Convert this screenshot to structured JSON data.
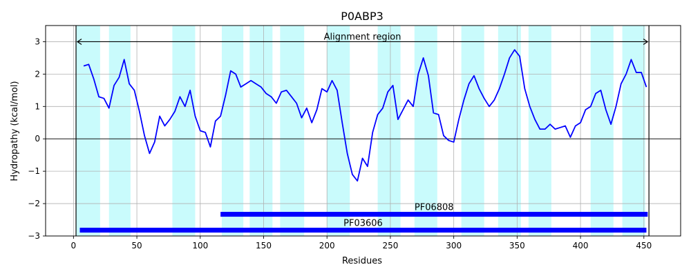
{
  "chart_data": {
    "type": "line",
    "title": "P0ABP3",
    "xlabel": "Residues",
    "ylabel": "Hydropathy (kcal/mol)",
    "xlim": [
      -22,
      479
    ],
    "ylim": [
      -3,
      3.5
    ],
    "xticks": [
      0,
      50,
      100,
      150,
      200,
      250,
      300,
      350,
      400,
      450
    ],
    "yticks": [
      -3,
      -2,
      -1,
      0,
      1,
      2,
      3
    ],
    "grid": true,
    "colors": {
      "line": "#0000ff",
      "bands": "#c9fbfc",
      "domains": "#0000ff",
      "zero_line": "#000000",
      "grid": "#b0b0b0"
    },
    "alignment_region": {
      "label": "Alignment region",
      "start": 2,
      "end": 454,
      "y": 3.0
    },
    "bands": [
      [
        2,
        21
      ],
      [
        28,
        45
      ],
      [
        78,
        96
      ],
      [
        117,
        134
      ],
      [
        139,
        157
      ],
      [
        163,
        182
      ],
      [
        200,
        218
      ],
      [
        240,
        258
      ],
      [
        269,
        287
      ],
      [
        306,
        324
      ],
      [
        335,
        353
      ],
      [
        359,
        377
      ],
      [
        408,
        426
      ],
      [
        433,
        451
      ]
    ],
    "domains": [
      {
        "label": "PF06808",
        "start": 116,
        "end": 453,
        "y": -2.33
      },
      {
        "label": "PF03606",
        "start": 5,
        "end": 452,
        "y": -2.82
      }
    ],
    "series": [
      {
        "x": [
          8,
          12,
          16,
          20,
          24,
          28,
          32,
          36,
          40,
          44,
          48,
          52,
          56,
          60,
          64,
          68,
          72,
          76,
          80,
          84,
          88,
          92,
          96,
          100,
          104,
          108,
          112,
          116,
          120,
          124,
          128,
          132,
          136,
          140,
          144,
          148,
          152,
          156,
          160,
          164,
          168,
          172,
          176,
          180,
          184,
          188,
          192,
          196,
          200,
          204,
          208,
          212,
          216,
          220,
          224,
          228,
          232,
          236,
          240,
          244,
          248,
          252,
          256,
          260,
          264,
          268,
          272,
          276,
          280,
          284,
          288,
          292,
          296,
          300,
          304,
          308,
          312,
          316,
          320,
          324,
          328,
          332,
          336,
          340,
          344,
          348,
          352,
          356,
          360,
          364,
          368,
          372,
          376,
          380,
          384,
          388,
          392,
          396,
          400,
          404,
          408,
          412,
          416,
          420,
          424,
          428,
          432,
          436,
          440,
          444,
          448,
          452
        ],
        "y": [
          2.25,
          2.3,
          1.85,
          1.3,
          1.25,
          0.95,
          1.65,
          1.9,
          2.45,
          1.7,
          1.5,
          0.85,
          0.1,
          -0.45,
          -0.1,
          0.7,
          0.4,
          0.6,
          0.85,
          1.3,
          1.0,
          1.5,
          0.7,
          0.25,
          0.2,
          -0.25,
          0.55,
          0.7,
          1.35,
          2.1,
          2.0,
          1.6,
          1.7,
          1.8,
          1.7,
          1.6,
          1.4,
          1.3,
          1.1,
          1.45,
          1.5,
          1.3,
          1.1,
          0.65,
          0.95,
          0.5,
          0.9,
          1.55,
          1.45,
          1.8,
          1.5,
          0.5,
          -0.45,
          -1.1,
          -1.3,
          -0.6,
          -0.85,
          0.2,
          0.75,
          0.95,
          1.45,
          1.65,
          0.6,
          0.9,
          1.2,
          1.0,
          2.0,
          2.5,
          1.95,
          0.8,
          0.75,
          0.1,
          -0.05,
          -0.1,
          0.6,
          1.2,
          1.7,
          1.95,
          1.55,
          1.25,
          1.0,
          1.2,
          1.55,
          2.0,
          2.5,
          2.75,
          2.55,
          1.55,
          1.0,
          0.6,
          0.3,
          0.3,
          0.45,
          0.3,
          0.35,
          0.4,
          0.05,
          0.4,
          0.5,
          0.9,
          1.0,
          1.4,
          1.5,
          0.9,
          0.45,
          1.0,
          1.7,
          2.0,
          2.45,
          2.05,
          2.05,
          1.6
        ]
      }
    ]
  }
}
